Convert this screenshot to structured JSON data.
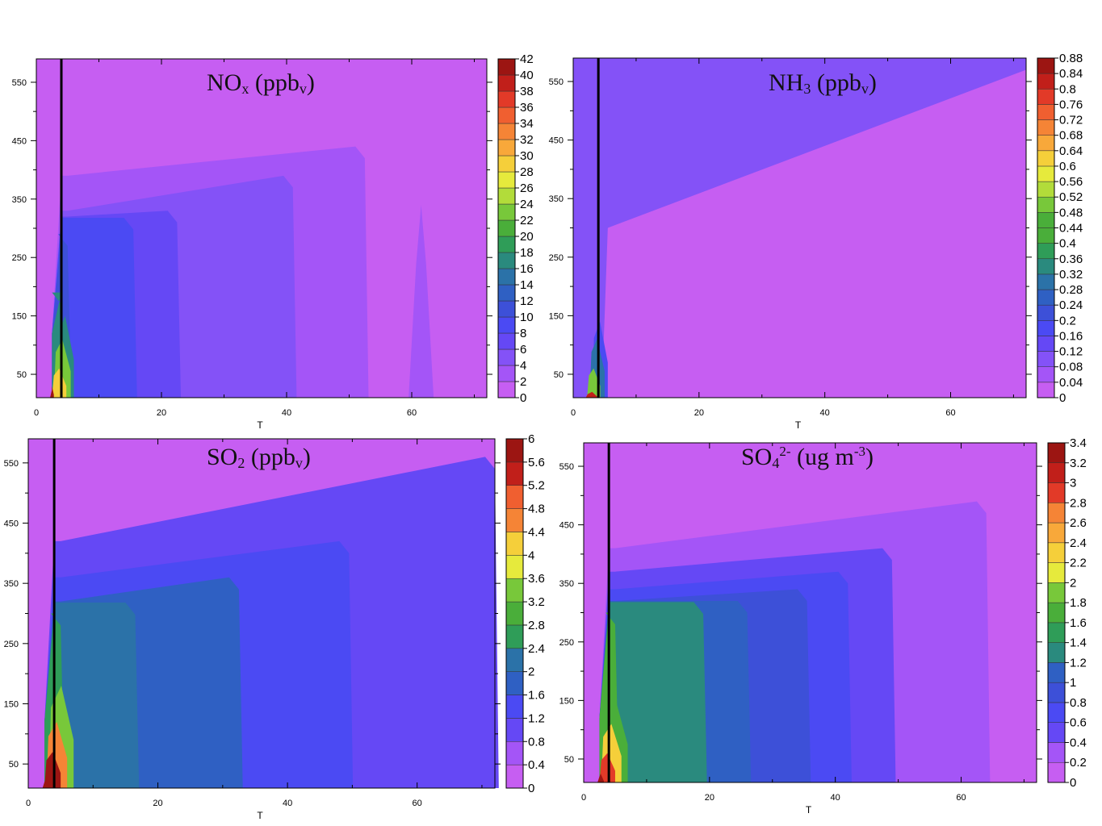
{
  "colors": {
    "background_fill": "#c65ef2",
    "levels": [
      "#c65ef2",
      "#a455f7",
      "#8452f7",
      "#6548f5",
      "#4b4af3",
      "#3d50d8",
      "#2f60c3",
      "#2b72a8",
      "#2a8a7e",
      "#2f9d58",
      "#4aae3a",
      "#78c83a",
      "#b2dc3a",
      "#e6ea3c",
      "#f5cf3a",
      "#f8a83a",
      "#f58436",
      "#f05f30",
      "#e23a28",
      "#c11f1a",
      "#9c1512"
    ],
    "optimum_line": "#000000"
  },
  "charts": [
    {
      "id": "nox",
      "title": {
        "main": "NO",
        "sub1": "x",
        "rest": " (ppb",
        "sub2": "v",
        "end": ")"
      },
      "xlabel": "T",
      "xlim": [
        0,
        72
      ],
      "ylim": [
        10,
        590
      ],
      "xticks": [
        "0",
        "20",
        "40",
        "60"
      ],
      "yticks": [
        "50",
        "150",
        "250",
        "350",
        "450",
        "550"
      ],
      "optimum_x": 4,
      "colorbar_labels": [
        "0",
        "2",
        "4",
        "6",
        "8",
        "10",
        "12",
        "14",
        "16",
        "18",
        "20",
        "22",
        "24",
        "26",
        "28",
        "30",
        "32",
        "34",
        "36",
        "38",
        "40",
        "42"
      ],
      "bands": [
        {
          "x_end": 4,
          "base_top": 190,
          "ymax": 190,
          "level": 8
        },
        {
          "x_end": 5,
          "base_top": 290,
          "ymax": 290,
          "level": 5
        },
        {
          "x_end": 15.5,
          "base_top": 318,
          "ymax": 318,
          "level": 4
        },
        {
          "x_end": 22.5,
          "base_top": 320,
          "ymax": 330,
          "level": 3
        },
        {
          "x_end": 41,
          "base_top": 330,
          "ymax": 390,
          "level": 2
        },
        {
          "x_end": 52.5,
          "base_top": 390,
          "ymax": 440,
          "level": 1
        }
      ],
      "spike": {
        "x_center": 61.5,
        "half_width": 2,
        "ymax": 340,
        "level": 1
      },
      "hotspot": [
        {
          "x0": 2.2,
          "x1": 2.8,
          "ymax": 30,
          "level": 20
        },
        {
          "x0": 2.5,
          "x1": 4.8,
          "ymax": 60,
          "level": 14
        },
        {
          "x0": 2.8,
          "x1": 5.5,
          "ymax": 110,
          "level": 11
        },
        {
          "x0": 3.2,
          "x1": 6,
          "ymax": 150,
          "level": 8
        }
      ]
    },
    {
      "id": "nh3",
      "title": {
        "main": "NH",
        "sub1": "3",
        "rest": " (ppb",
        "sub2": "v",
        "end": ")"
      },
      "xlabel": "T",
      "xlim": [
        0,
        72
      ],
      "ylim": [
        10,
        590
      ],
      "xticks": [
        "0",
        "20",
        "40",
        "60"
      ],
      "yticks": [
        "50",
        "150",
        "250",
        "350",
        "450",
        "550"
      ],
      "optimum_x": 4,
      "colorbar_labels": [
        "0",
        "0.04",
        "0.08",
        "0.12",
        "0.16",
        "0.2",
        "0.24",
        "0.28",
        "0.32",
        "0.36",
        "0.4",
        "0.44",
        "0.48",
        "0.52",
        "0.56",
        "0.6",
        "0.64",
        "0.68",
        "0.72",
        "0.76",
        "0.8",
        "0.84",
        "0.88"
      ],
      "upper_band": {
        "x_start": 5.5,
        "y_start": 300,
        "x_end": 72,
        "y_end": 570,
        "level": 2
      },
      "hotspot": [
        {
          "x0": 2,
          "x1": 4,
          "ymax": 20,
          "level": 20
        },
        {
          "x0": 2.2,
          "x1": 4.3,
          "ymax": 60,
          "level": 12
        },
        {
          "x0": 2.6,
          "x1": 5,
          "ymax": 110,
          "level": 7
        },
        {
          "x0": 3,
          "x1": 5.5,
          "ymax": 140,
          "level": 4
        }
      ]
    },
    {
      "id": "so2",
      "title": {
        "main": "SO",
        "sub1": "2",
        "rest": " (ppb",
        "sub2": "v",
        "end": ")"
      },
      "xlabel": "T",
      "xlim": [
        0,
        72
      ],
      "ylim": [
        10,
        590
      ],
      "xticks": [
        "0",
        "20",
        "40",
        "60"
      ],
      "yticks": [
        "50",
        "150",
        "250",
        "350",
        "450",
        "550"
      ],
      "optimum_x": 4,
      "colorbar_labels": [
        "0",
        "0.4",
        "0.8",
        "1.2",
        "1.6",
        "2",
        "2.4",
        "2.8",
        "3.2",
        "3.6",
        "4",
        "4.4",
        "4.8",
        "5.2",
        "5.6",
        "6"
      ],
      "bands": [
        {
          "x_end": 5,
          "base_top": 300,
          "ymax": 300,
          "level": 6
        },
        {
          "x_end": 16.5,
          "base_top": 318,
          "ymax": 318,
          "level": 5
        },
        {
          "x_end": 32.5,
          "base_top": 320,
          "ymax": 360,
          "level": 4
        },
        {
          "x_end": 49.5,
          "base_top": 360,
          "ymax": 420,
          "level": 3
        },
        {
          "x_end": 72,
          "base_top": 420,
          "ymax": 560,
          "level": 2
        }
      ],
      "hotspot": [
        {
          "x0": 2.2,
          "x1": 3.2,
          "ymax": 25,
          "level": 20
        },
        {
          "x0": 2.5,
          "x1": 5,
          "ymax": 70,
          "level": 14
        },
        {
          "x0": 2.8,
          "x1": 6,
          "ymax": 120,
          "level": 11
        },
        {
          "x0": 3.2,
          "x1": 7,
          "ymax": 180,
          "level": 8
        }
      ]
    },
    {
      "id": "so4",
      "title": {
        "main": "SO",
        "sub1": "4",
        "sup": "2-",
        "rest": " (ug m",
        "sup2": "-3",
        "end": ")"
      },
      "xlabel": "T",
      "xlim": [
        0,
        72
      ],
      "ylim": [
        10,
        590
      ],
      "xticks": [
        "0",
        "20",
        "40",
        "60"
      ],
      "yticks": [
        "50",
        "150",
        "250",
        "350",
        "450",
        "550"
      ],
      "optimum_x": 4,
      "colorbar_labels": [
        "0",
        "0.2",
        "0.4",
        "0.6",
        "0.8",
        "1",
        "1.2",
        "1.4",
        "1.6",
        "1.8",
        "2",
        "2.2",
        "2.4",
        "2.6",
        "2.8",
        "3",
        "3.2",
        "3.4"
      ],
      "bands": [
        {
          "x_end": 5,
          "base_top": 300,
          "ymax": 300,
          "level": 8
        },
        {
          "x_end": 19,
          "base_top": 318,
          "ymax": 318,
          "level": 6
        },
        {
          "x_end": 26,
          "base_top": 320,
          "ymax": 320,
          "level": 5
        },
        {
          "x_end": 35.5,
          "base_top": 320,
          "ymax": 340,
          "level": 4
        },
        {
          "x_end": 42,
          "base_top": 340,
          "ymax": 370,
          "level": 3
        },
        {
          "x_end": 49,
          "base_top": 370,
          "ymax": 410,
          "level": 2
        },
        {
          "x_end": 64,
          "base_top": 410,
          "ymax": 490,
          "level": 1
        }
      ],
      "hotspot": [
        {
          "x0": 2.2,
          "x1": 3.2,
          "ymax": 25,
          "level": 18
        },
        {
          "x0": 2.5,
          "x1": 5,
          "ymax": 60,
          "level": 14
        },
        {
          "x0": 2.8,
          "x1": 6,
          "ymax": 110,
          "level": 11
        },
        {
          "x0": 3.2,
          "x1": 7,
          "ymax": 150,
          "level": 8
        }
      ]
    }
  ]
}
